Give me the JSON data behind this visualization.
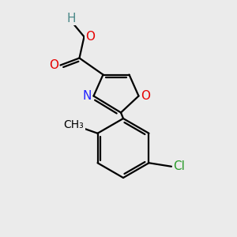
{
  "bg_color": "#ebebeb",
  "bond_color": "#000000",
  "bond_width": 1.6,
  "atom_labels": {
    "H": {
      "color": "#4a8888",
      "fontsize": 11
    },
    "O": {
      "color": "#e60000",
      "fontsize": 11
    },
    "N": {
      "color": "#2222ff",
      "fontsize": 11
    },
    "Cl": {
      "color": "#2a9a2a",
      "fontsize": 11
    },
    "CH3": {
      "color": "#000000",
      "fontsize": 10
    }
  },
  "figsize": [
    3.0,
    3.0
  ],
  "dpi": 100
}
